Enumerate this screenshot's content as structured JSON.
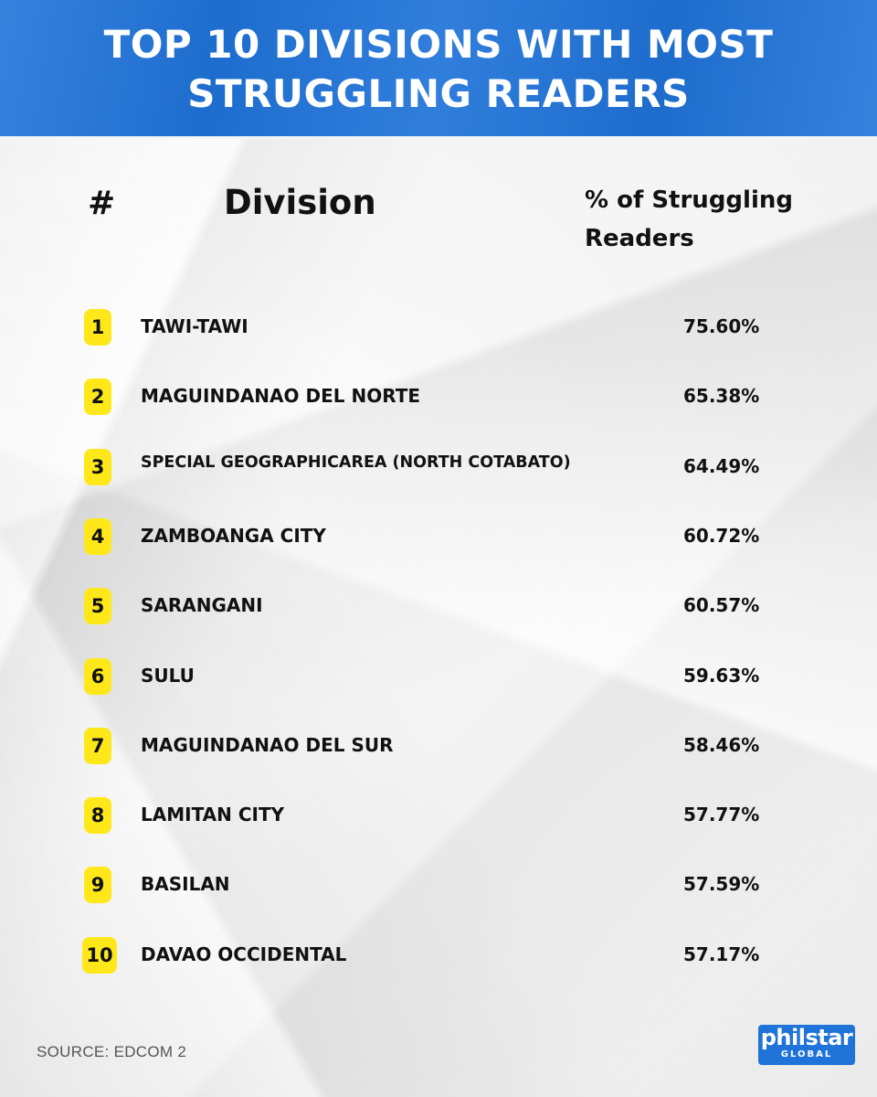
{
  "title": {
    "line1": "TOP 10 DIVISIONS WITH MOST",
    "line2": "STRUGGLING READERS"
  },
  "headers": {
    "rank": "#",
    "division": "Division",
    "percent_line1": "% of Struggling",
    "percent_line2": "Readers"
  },
  "chart_data": {
    "type": "table",
    "title": "TOP 10 DIVISIONS WITH MOST STRUGGLING READERS",
    "columns": [
      "#",
      "Division",
      "% of Struggling Readers"
    ],
    "rows": [
      {
        "rank": "1",
        "division": "TAWI-TAWI",
        "percent": "75.60%"
      },
      {
        "rank": "2",
        "division": "MAGUINDANAO DEL NORTE",
        "percent": "65.38%"
      },
      {
        "rank": "3",
        "division": "SPECIAL GEOGRAPHICAREA (NORTH COTABATO)",
        "percent": "64.49%"
      },
      {
        "rank": "4",
        "division": "ZAMBOANGA CITY",
        "percent": "60.72%"
      },
      {
        "rank": "5",
        "division": "SARANGANI",
        "percent": "60.57%"
      },
      {
        "rank": "6",
        "division": "SULU",
        "percent": "59.63%"
      },
      {
        "rank": "7",
        "division": "MAGUINDANAO DEL SUR",
        "percent": "58.46%"
      },
      {
        "rank": "8",
        "division": "LAMITAN CITY",
        "percent": "57.77%"
      },
      {
        "rank": "9",
        "division": "BASILAN",
        "percent": "57.59%"
      },
      {
        "rank": "10",
        "division": "DAVAO OCCIDENTAL",
        "percent": "57.17%"
      }
    ]
  },
  "source": "SOURCE: EDCOM 2",
  "logo": {
    "word": "philstar",
    "sub": "GLOBAL"
  },
  "colors": {
    "header_blue": "#1f73d9",
    "badge_yellow": "#ffe81a"
  }
}
